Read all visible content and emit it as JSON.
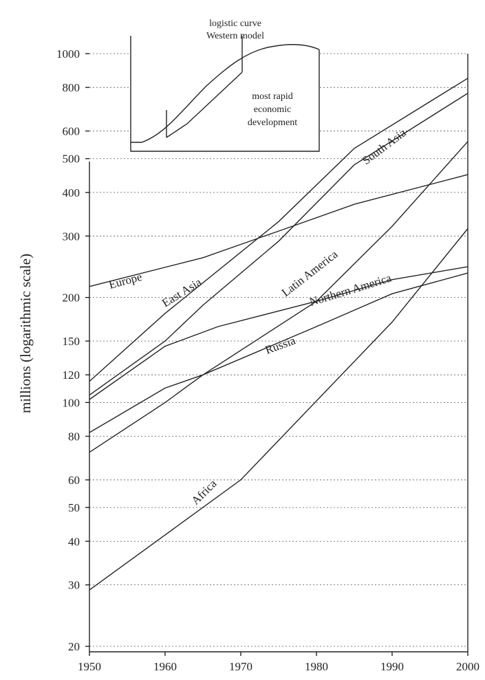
{
  "chart_data": {
    "type": "line",
    "ylabel": "millions (logarithmic scale)",
    "yscale": "log",
    "ylim": [
      20,
      1000
    ],
    "xlim": [
      1950,
      2000
    ],
    "x_ticks": [
      "1950",
      "1960",
      "1970",
      "1980",
      "1990",
      "2000"
    ],
    "y_ticks": [
      "20",
      "30",
      "40",
      "50",
      "60",
      "80",
      "100",
      "120",
      "150",
      "200",
      "300",
      "400",
      "500",
      "600",
      "800",
      "1000"
    ],
    "y_tick_values": [
      20,
      30,
      40,
      50,
      60,
      80,
      100,
      120,
      150,
      200,
      300,
      400,
      500,
      600,
      800,
      1000
    ],
    "grid": "horizontal dotted",
    "series": [
      {
        "name": "Europe",
        "x": [
          1950,
          1965,
          1975,
          1985,
          2000
        ],
        "values": [
          215,
          260,
          310,
          370,
          450
        ]
      },
      {
        "name": "East Asia",
        "x": [
          1950,
          1960,
          1965,
          1975,
          1985,
          2000
        ],
        "values": [
          105,
          150,
          190,
          290,
          480,
          770
        ]
      },
      {
        "name": "South Asia",
        "x": [
          1950,
          1960,
          1975,
          1985,
          2000
        ],
        "values": [
          115,
          180,
          330,
          535,
          850
        ]
      },
      {
        "name": "Latin America",
        "x": [
          1950,
          1960,
          1965,
          1980,
          1990,
          2000
        ],
        "values": [
          72,
          100,
          120,
          195,
          320,
          560
        ]
      },
      {
        "name": "Northern America",
        "x": [
          1950,
          1960,
          1967,
          1980,
          1990,
          2000
        ],
        "values": [
          102,
          145,
          165,
          195,
          225,
          245
        ]
      },
      {
        "name": "Russia",
        "x": [
          1950,
          1960,
          1965,
          1980,
          1990,
          2000
        ],
        "values": [
          82,
          110,
          120,
          165,
          205,
          235
        ]
      },
      {
        "name": "Africa",
        "x": [
          1950,
          1970,
          1990,
          2000
        ],
        "values": [
          29,
          60,
          170,
          315
        ]
      }
    ],
    "inset": {
      "lines": [
        "logistic curve",
        "Western model",
        "most rapid",
        "economic",
        "development"
      ]
    }
  }
}
